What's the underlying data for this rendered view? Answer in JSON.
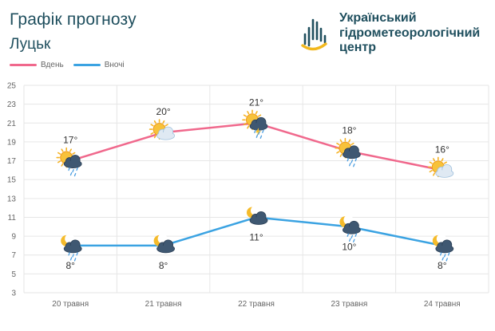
{
  "header": {
    "title": "Графік прогнозу",
    "city": "Луцьк"
  },
  "logo": {
    "icon": "water-drop-logo-icon",
    "line1": "Український",
    "line2": "гідрометеорологічний",
    "line3": "центр"
  },
  "colors": {
    "day": "#f0688c",
    "night": "#3ba3e2",
    "brand": "#1f4f5e",
    "grid": "#e6e6e6",
    "axis_text": "#666666"
  },
  "chart_data": {
    "type": "line",
    "categories": [
      "20 травня",
      "21 травня",
      "22 травня",
      "23 травня",
      "24 травня"
    ],
    "ylim": [
      3,
      25
    ],
    "yticks": [
      3,
      5,
      7,
      9,
      11,
      13,
      15,
      17,
      19,
      21,
      23,
      25
    ],
    "grid": true,
    "legend_position": "top-left",
    "series": [
      {
        "name": "Вдень",
        "values": [
          17,
          20,
          21,
          18,
          16
        ],
        "labels": [
          "17°",
          "20°",
          "21°",
          "18°",
          "16°"
        ],
        "icons": [
          "sun-cloud-rain-icon",
          "sun-cloud-icon",
          "sun-cloud-thunder-rain-icon",
          "sun-cloud-rain-icon",
          "sun-cloud-icon"
        ]
      },
      {
        "name": "Вночі",
        "values": [
          8,
          8,
          11,
          10,
          8
        ],
        "labels": [
          "8°",
          "8°",
          "11°",
          "10°",
          "8°"
        ],
        "icons": [
          "moon-cloud-rain-icon",
          "moon-cloud-icon",
          "moon-cloud-icon",
          "moon-cloud-rain-icon",
          "moon-cloud-rain-icon"
        ]
      }
    ]
  }
}
